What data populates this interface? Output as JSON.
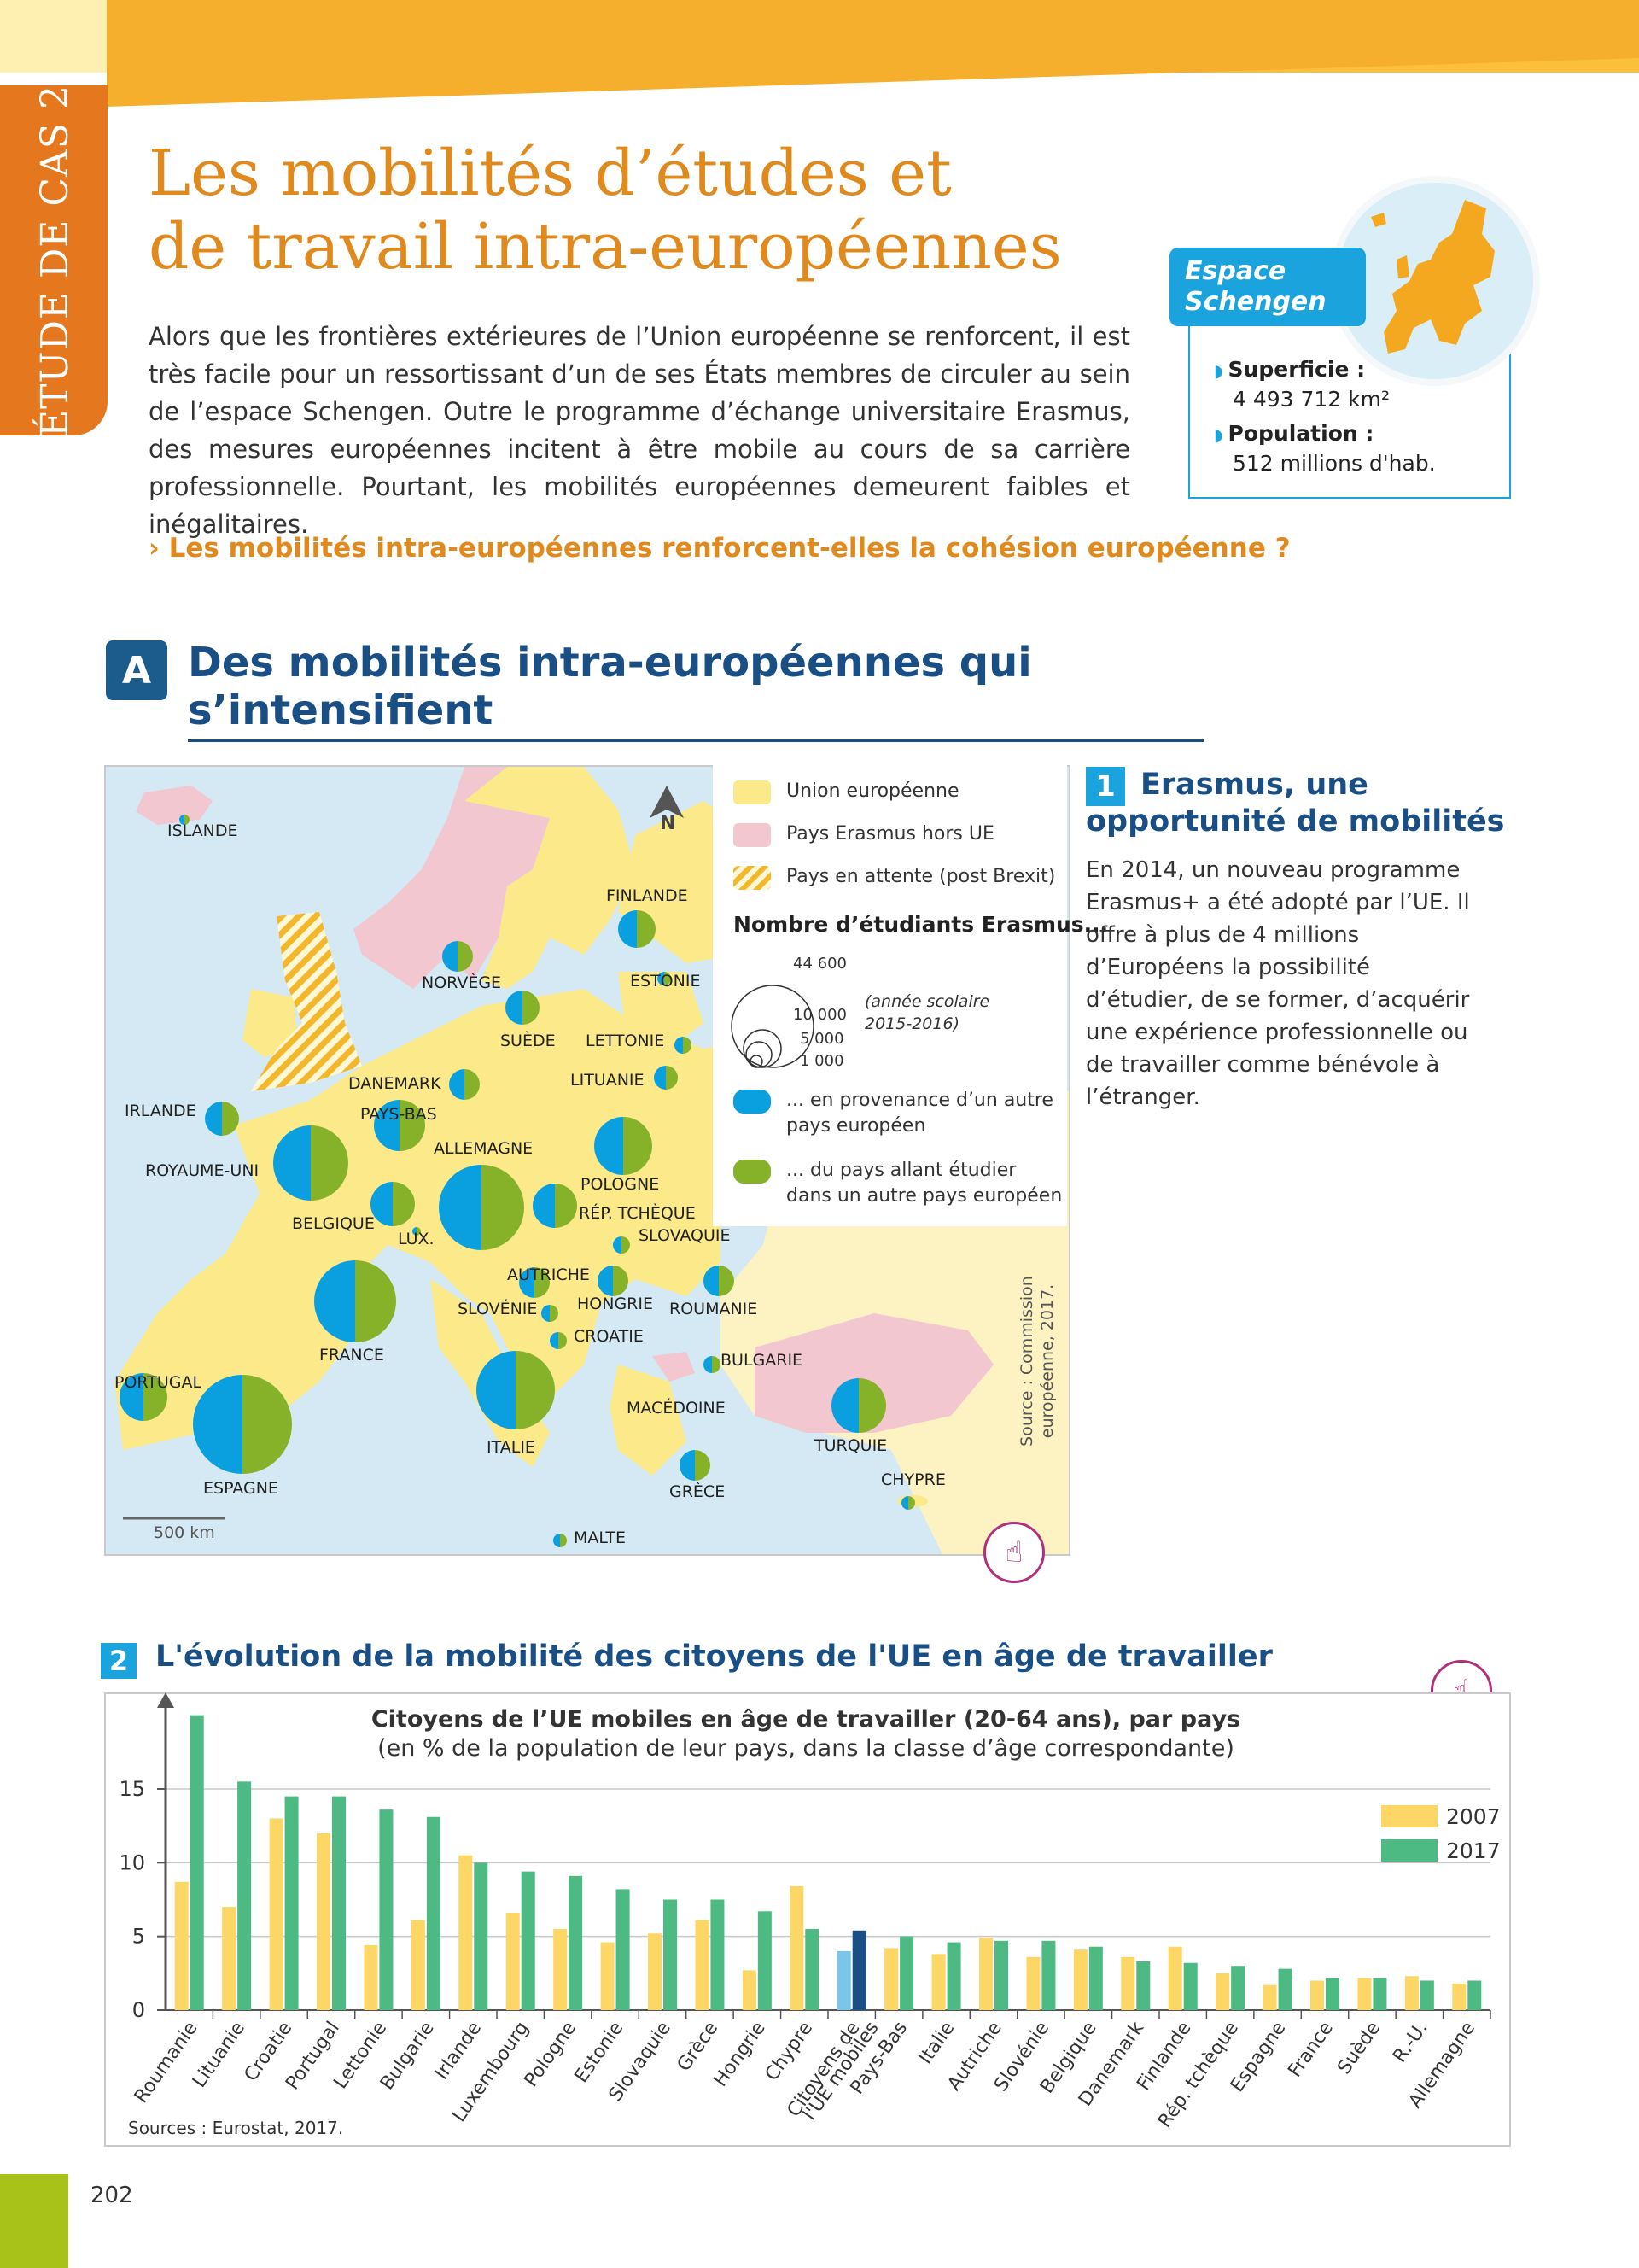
{
  "side_tab": "ÉTUDE DE CAS 2",
  "title_line1": "Les mobilités d’études et",
  "title_line2": "de travail intra-européennes",
  "intro": "Alors que les frontières extérieures de l’Union européenne se renforcent, il est très facile pour un ressortissant d’un de ses États membres de circuler au sein de l’espace Schengen. Outre le programme d’échange universitaire Erasmus, des mesures européennes incitent à être mobile au cours de sa carrière professionnelle. Pourtant, les mobilités européennes demeurent faibles et inégalitaires.",
  "question": "› Les mobilités intra-européennes renforcent-elles la cohésion européenne ?",
  "schengen": {
    "label_line1": "Espace",
    "label_line2": "Schengen",
    "area_label": "Superficie :",
    "area_value": "4 493 712 km²",
    "pop_label": "Population :",
    "pop_value": "512 millions d'hab."
  },
  "sectionA": {
    "badge": "A",
    "title": "Des mobilités intra-européennes qui s’intensifient"
  },
  "doc1": {
    "num": "1",
    "title_line1": "Erasmus, une",
    "title_line2": "opportunité de mobilités",
    "text": "En 2014, un nouveau programme Erasmus+ a été adopté par l’UE. Il offre à plus de 4 millions d’Européens la possibilité d’étudier, de se former, d’acquérir une expérience professionnelle ou de travailler comme bénévole à l’étranger."
  },
  "map": {
    "legend": {
      "eu": "Union européenne",
      "non_eu": "Pays Erasmus hors UE",
      "brexit": "Pays en attente (post Brexit)",
      "circles_title": "Nombre d’étudiants Erasmus...",
      "v1": "44 600",
      "v2": "10 000",
      "v3": "5 000",
      "v4": "1 000",
      "year_note_1": "(année scolaire",
      "year_note_2": "2015-2016)",
      "incoming_1": "... en provenance d’un autre",
      "incoming_2": "pays européen",
      "outgoing_1": "... du pays allant étudier",
      "outgoing_2": "dans un autre pays européen"
    },
    "north": "N",
    "scale": "500 km",
    "source_1": "Source : Commission",
    "source_2": "européenne, 2017.",
    "colors": {
      "sea": "#d4e9f3",
      "eu": "#fbe98a",
      "non_eu": "#f2c7cf",
      "in": "#0aa0e0",
      "out": "#86b22a"
    },
    "countries": [
      {
        "name": "ISLANDE"
      },
      {
        "name": "NORVÈGE"
      },
      {
        "name": "FINLANDE"
      },
      {
        "name": "ESTONIE"
      },
      {
        "name": "SUÈDE"
      },
      {
        "name": "LETTONIE"
      },
      {
        "name": "LITUANIE"
      },
      {
        "name": "DANEMARK"
      },
      {
        "name": "IRLANDE"
      },
      {
        "name": "PAYS-BAS"
      },
      {
        "name": "ROYAUME-UNI"
      },
      {
        "name": "ALLEMAGNE"
      },
      {
        "name": "POLOGNE"
      },
      {
        "name": "BELGIQUE"
      },
      {
        "name": "LUX."
      },
      {
        "name": "RÉP. TCHÈQUE"
      },
      {
        "name": "SLOVAQUIE"
      },
      {
        "name": "AUTRICHE"
      },
      {
        "name": "HONGRIE"
      },
      {
        "name": "ROUMANIE"
      },
      {
        "name": "SLOVÉNIE"
      },
      {
        "name": "CROATIE"
      },
      {
        "name": "FRANCE"
      },
      {
        "name": "BULGARIE"
      },
      {
        "name": "PORTUGAL"
      },
      {
        "name": "MACÉDOINE"
      },
      {
        "name": "ITALIE"
      },
      {
        "name": "TURQUIE"
      },
      {
        "name": "ESPAGNE"
      },
      {
        "name": "GRÈCE"
      },
      {
        "name": "CHYPRE"
      },
      {
        "name": "MALTE"
      }
    ]
  },
  "doc2": {
    "num": "2",
    "title": "L'évolution de la mobilité des citoyens de l'UE en âge de travailler",
    "source": "Sources : Eurostat, 2017."
  },
  "chart_data": {
    "type": "bar",
    "title": "Citoyens de l’UE mobiles en âge de travailler (20-64 ans), par pays",
    "subtitle": "(en % de la population de leur pays, dans la classe d’âge correspondante)",
    "categories": [
      "Roumanie",
      "Lituanie",
      "Croatie",
      "Portugal",
      "Lettonie",
      "Bulgarie",
      "Irlande",
      "Luxembourg",
      "Pologne",
      "Estonie",
      "Slovaquie",
      "Grèce",
      "Hongrie",
      "Chypre",
      "Citoyens de l'UE mobiles",
      "Pays-Bas",
      "Italie",
      "Autriche",
      "Slovénie",
      "Belgique",
      "Danemark",
      "Finlande",
      "Rép. tchèque",
      "Espagne",
      "France",
      "Suède",
      "R.-U.",
      "Allemagne"
    ],
    "series": [
      {
        "name": "2007",
        "color": "#fcd766",
        "values": [
          8.7,
          7.0,
          13.0,
          12.0,
          4.4,
          6.1,
          10.5,
          6.6,
          5.5,
          4.6,
          5.2,
          6.1,
          2.7,
          8.4,
          4.0,
          4.2,
          3.8,
          4.9,
          3.6,
          4.1,
          3.6,
          4.3,
          2.5,
          1.7,
          2.0,
          2.2,
          2.3,
          1.8
        ]
      },
      {
        "name": "2017",
        "color": "#4cba82",
        "values": [
          20.0,
          15.5,
          14.5,
          14.5,
          13.6,
          13.1,
          10.0,
          9.4,
          9.1,
          8.2,
          7.5,
          7.5,
          6.7,
          5.5,
          5.4,
          5.0,
          4.6,
          4.7,
          4.7,
          4.3,
          3.3,
          3.2,
          3.0,
          2.8,
          2.2,
          2.2,
          2.0,
          2.0
        ]
      }
    ],
    "highlight_category": "Citoyens de l'UE mobiles",
    "highlight_colors": {
      "2007": "#7ac6ea",
      "2017": "#1a4f86"
    },
    "yticks": [
      0,
      5,
      10,
      15
    ],
    "ylim": [
      0,
      20.5
    ]
  },
  "page_number": "202"
}
